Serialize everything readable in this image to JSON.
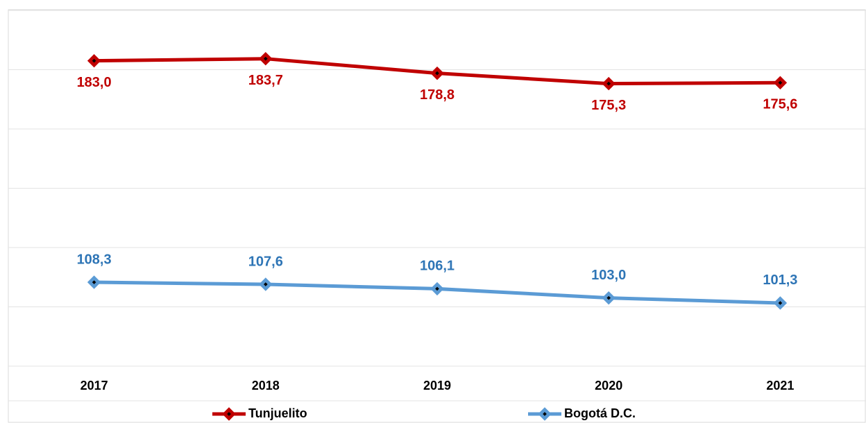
{
  "chart_data": {
    "type": "line",
    "categories": [
      "2017",
      "2018",
      "2019",
      "2020",
      "2021"
    ],
    "series": [
      {
        "name": "Tunjuelito",
        "color": "#c00000",
        "label_color": "#c00000",
        "label_position": "below",
        "values": [
          183.0,
          183.7,
          178.8,
          175.3,
          175.6
        ],
        "value_labels": [
          "183,0",
          "183,7",
          "178,8",
          "175,3",
          "175,6"
        ]
      },
      {
        "name": "Bogotá D.C.",
        "color": "#5b9bd5",
        "label_color": "#2e75b6",
        "label_position": "above",
        "values": [
          108.3,
          107.6,
          106.1,
          103.0,
          101.3
        ],
        "value_labels": [
          "108,3",
          "107,6",
          "106,1",
          "103,0",
          "101,3"
        ]
      }
    ],
    "ylim": [
      80,
      200
    ],
    "yticks": [
      80,
      100,
      120,
      140,
      160,
      180,
      200
    ],
    "grid": true,
    "legend": "bottom"
  }
}
